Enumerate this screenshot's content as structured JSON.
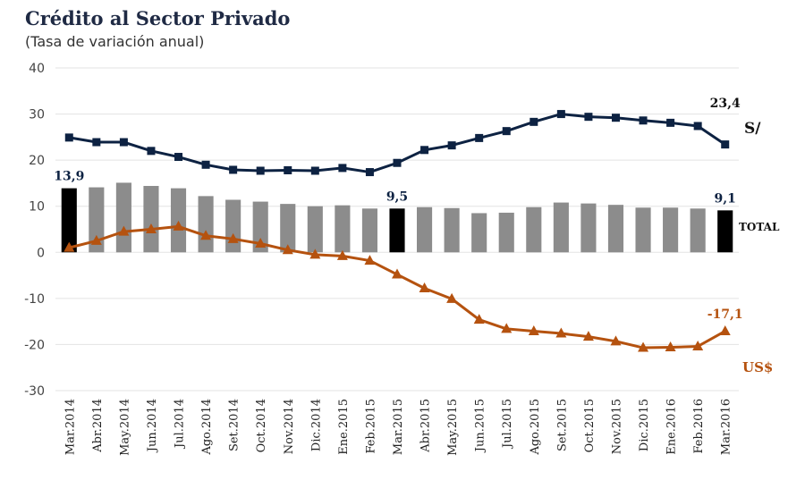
{
  "title": "Crédito al Sector Privado",
  "subtitle": "(Tasa de variación anual)",
  "colors": {
    "soles": "#0d2242",
    "usd": "#b5520f",
    "total_bar": "#8c8c8c",
    "highlight_bar": "#000000",
    "grid": "#e3e3e3"
  },
  "chart_data": {
    "type": "bar",
    "categories": [
      "Mar.2014",
      "Abr.2014",
      "May.2014",
      "Jun.2014",
      "Jul.2014",
      "Ago.2014",
      "Set.2014",
      "Oct.2014",
      "Nov.2014",
      "Dic.2014",
      "Ene.2015",
      "Feb.2015",
      "Mar.2015",
      "Abr.2015",
      "May.2015",
      "Jun.2015",
      "Jul.2015",
      "Ago.2015",
      "Set.2015",
      "Oct.2015",
      "Nov.2015",
      "Dic.2015",
      "Ene.2016",
      "Feb.2016",
      "Mar.2016"
    ],
    "ylim": [
      -30,
      40
    ],
    "yticks": [
      40,
      30,
      20,
      10,
      0,
      -10,
      -20,
      -30
    ],
    "grid": true,
    "series": [
      {
        "name": "TOTAL",
        "kind": "bar",
        "values": [
          13.9,
          14.1,
          15.1,
          14.4,
          13.9,
          12.2,
          11.4,
          11.0,
          10.5,
          10.0,
          10.2,
          9.5,
          9.5,
          9.8,
          9.6,
          8.5,
          8.6,
          9.8,
          10.8,
          10.6,
          10.3,
          9.7,
          9.7,
          9.5,
          9.1
        ],
        "highlight_indices": [
          0,
          12,
          24
        ],
        "labels": [
          {
            "index": 0,
            "text": "13,9"
          },
          {
            "index": 12,
            "text": "9,5"
          },
          {
            "index": 24,
            "text": "9,1"
          }
        ]
      },
      {
        "name": "S/",
        "kind": "line",
        "marker": "square",
        "values": [
          24.9,
          23.9,
          23.9,
          22.0,
          20.7,
          19.0,
          17.9,
          17.7,
          17.8,
          17.7,
          18.3,
          17.4,
          19.4,
          22.2,
          23.2,
          24.8,
          26.3,
          28.3,
          30.0,
          29.4,
          29.2,
          28.6,
          28.1,
          27.4,
          23.4
        ],
        "labels": [
          {
            "index": 24,
            "text": "23,4"
          }
        ]
      },
      {
        "name": "US$",
        "kind": "line",
        "marker": "triangle",
        "values": [
          1.0,
          2.5,
          4.5,
          5.0,
          5.6,
          3.6,
          2.9,
          1.9,
          0.5,
          -0.5,
          -0.8,
          -1.8,
          -4.8,
          -7.8,
          -10.1,
          -14.6,
          -16.6,
          -17.1,
          -17.6,
          -18.3,
          -19.3,
          -20.7,
          -20.6,
          -20.4,
          -17.1
        ],
        "labels": [
          {
            "index": 24,
            "text": "-17,1"
          }
        ]
      }
    ],
    "series_labels": {
      "soles": "S/",
      "total": "TOTAL",
      "usd": "US$"
    }
  }
}
